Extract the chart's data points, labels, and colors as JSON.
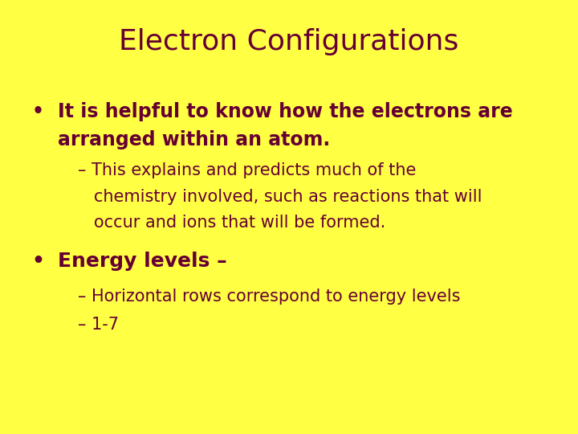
{
  "title": "Electron Configurations",
  "background_color": "#FFFF44",
  "title_color": "#660033",
  "text_color": "#660033",
  "title_fontsize": 26,
  "bullet_fontsize": 17,
  "sub_fontsize": 15,
  "bullet1_line1": "It is helpful to know how the electrons are",
  "bullet1_line2": "arranged within an atom.",
  "sub1_line1": "– This explains and predicts much of the",
  "sub1_line2": "   chemistry involved, such as reactions that will",
  "sub1_line3": "   occur and ions that will be formed.",
  "bullet2": "Energy levels –",
  "sub2a": "– Horizontal rows correspond to energy levels",
  "sub2b": "– 1-7"
}
